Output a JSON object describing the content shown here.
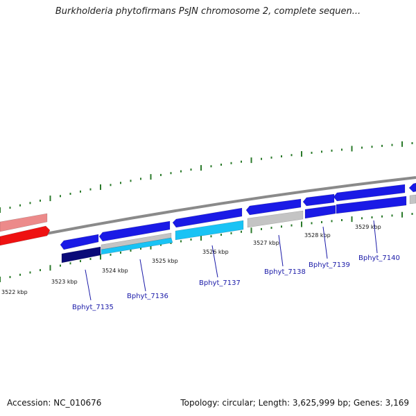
{
  "header": {
    "title": "Burkholderia phytofirmans PsJN chromosome 2, complete sequen..."
  },
  "footer": {
    "accession": "Accession: NC_010676",
    "summary": "Topology: circular; Length: 3,625,999 bp; Genes: 3,169"
  },
  "map": {
    "tick_labels": [
      "3522 kbp",
      "3523 kbp",
      "3524 kbp",
      "3525 kbp",
      "3526 kbp",
      "3527 kbp",
      "3528 kbp",
      "3529 kbp"
    ],
    "gene_labels": [
      "Bphyt_7135",
      "Bphyt_7136",
      "Bphyt_7137",
      "Bphyt_7138",
      "Bphyt_7139",
      "Bphyt_7140"
    ],
    "colors": {
      "backbone": "#8a8a8a",
      "tick": "#2a7a2a",
      "forward_gene": "#1a1ae6",
      "dark_gene": "#0a0a78",
      "cyan_gene": "#19c3f5",
      "gray_gene": "#c4c4c4",
      "red_gene": "#ee1111",
      "pink_gene": "#ec8a8a",
      "gene_label": "#1a1aa8"
    }
  }
}
